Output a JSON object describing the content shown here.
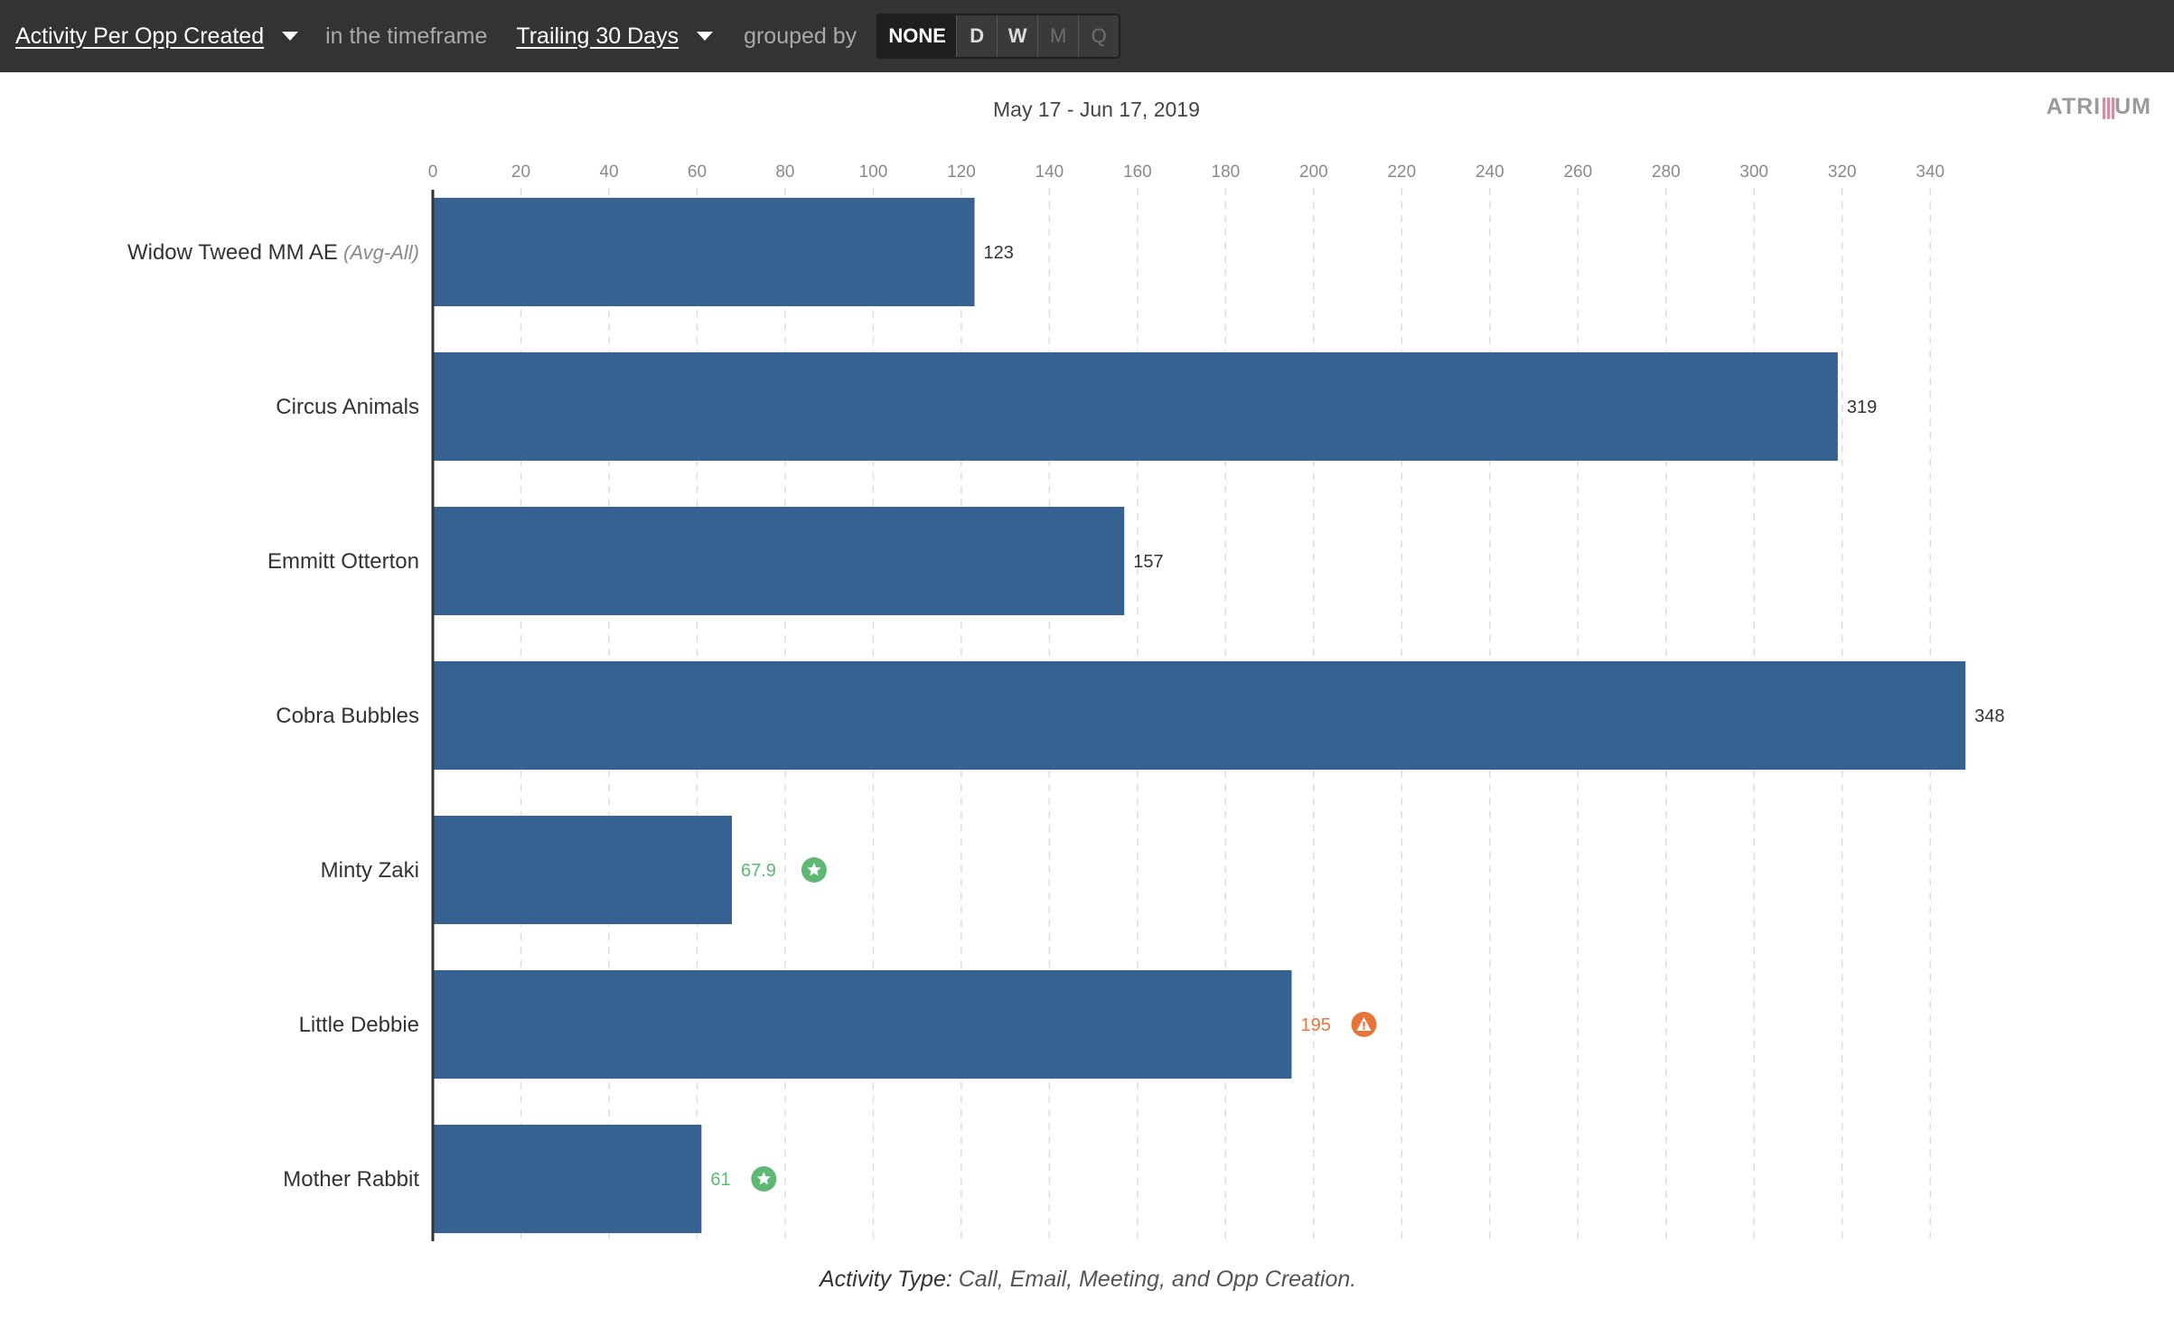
{
  "toolbar": {
    "metric_label": "Activity Per Opp Created",
    "timeframe_prefix": "in the timeframe",
    "timeframe_label": "Trailing 30 Days",
    "group_prefix": "grouped by",
    "group_options": [
      "NONE",
      "D",
      "W",
      "M",
      "Q"
    ],
    "group_selected": "NONE"
  },
  "date_range": "May 17 - Jun 17, 2019",
  "brand": {
    "prefix": "ATRI",
    "bars": "|||",
    "suffix": "UM"
  },
  "footnote": {
    "label": "Activity Type:",
    "text": " Call, Email, Meeting, and Opp Creation."
  },
  "colors": {
    "bar": "#366292",
    "good": "#5cb872",
    "warn": "#e8743b",
    "label": "#333333",
    "tick": "#8a8a8a",
    "grid": "#dddddd"
  },
  "chart_data": {
    "type": "bar",
    "orientation": "horizontal",
    "categories": [
      "Widow Tweed MM AE",
      "Circus Animals",
      "Emmitt Otterton",
      "Cobra Bubbles",
      "Minty Zaki",
      "Little Debbie",
      "Mother Rabbit"
    ],
    "category_suffixes": [
      "(Avg-All)",
      "",
      "",
      "",
      "",
      "",
      ""
    ],
    "values": [
      123,
      319,
      157,
      348,
      67.9,
      195,
      61
    ],
    "value_labels": [
      "123",
      "319",
      "157",
      "348",
      "67.9",
      "195",
      "61"
    ],
    "status": [
      "neutral",
      "neutral",
      "neutral",
      "neutral",
      "good",
      "warn",
      "good"
    ],
    "status_icons": [
      "",
      "",
      "",
      "",
      "star-badge-icon",
      "warning-badge-icon",
      "star-badge-icon"
    ],
    "xlim": [
      0,
      350
    ],
    "xticks": [
      0,
      20,
      40,
      60,
      80,
      100,
      120,
      140,
      160,
      180,
      200,
      220,
      240,
      260,
      280,
      300,
      320,
      340
    ],
    "grid": true,
    "title": "",
    "xlabel": "",
    "ylabel": ""
  }
}
